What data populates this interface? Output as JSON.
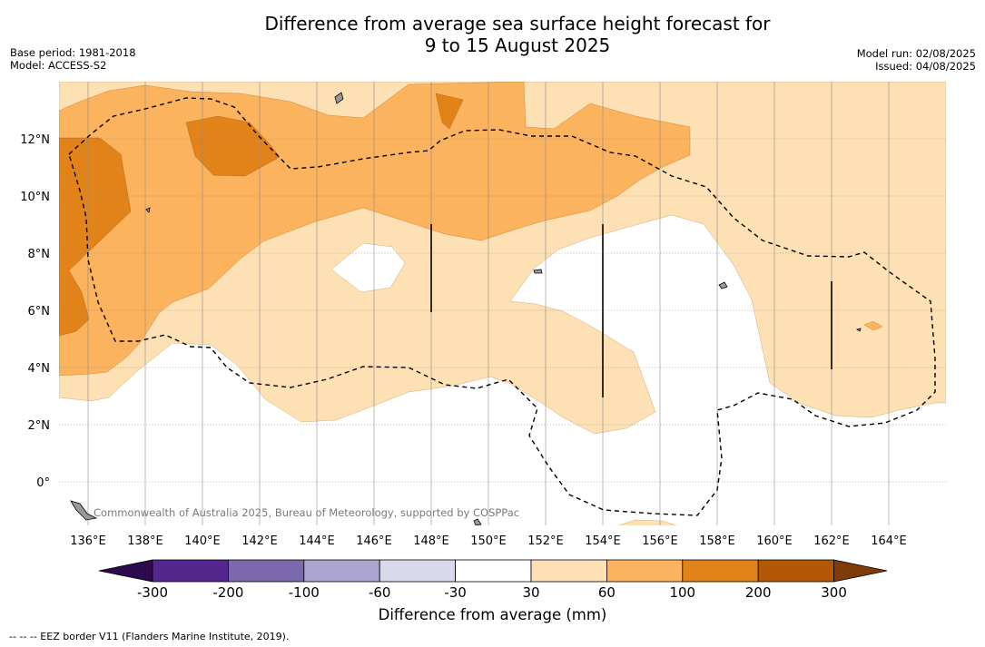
{
  "title_line1": "Difference from average sea surface height forecast for",
  "title_line2": "9 to 15 August 2025",
  "base_period": "Base period: 1981-2018",
  "model": "Model: ACCESS-S2",
  "model_run": "Model run: 02/08/2025",
  "issued": "Issued: 04/08/2025",
  "copyright": "Commonwealth of Australia 2025, Bureau of Meteorology, supported by COSPPac",
  "lon_labels": [
    "136°E",
    "138°E",
    "140°E",
    "142°E",
    "144°E",
    "146°E",
    "148°E",
    "150°E",
    "152°E",
    "154°E",
    "156°E",
    "158°E",
    "160°E",
    "162°E",
    "164°E"
  ],
  "lat_labels": [
    "12°N",
    "10°N",
    "8°N",
    "6°N",
    "4°N",
    "2°N",
    "0°"
  ],
  "colorbar": {
    "title": "Difference from average (mm)",
    "ticks": [
      "-300",
      "-200",
      "-100",
      "-60",
      "-30",
      "30",
      "60",
      "100",
      "200",
      "300"
    ],
    "colors": [
      "#2d0a4e",
      "#54278f",
      "#7b6aab",
      "#aca5cf",
      "#d9d9ec",
      "#ffffff",
      "#fde0b3",
      "#fbb35e",
      "#e2831a",
      "#b35806",
      "#7f3b08"
    ]
  },
  "footer_legend": "-- -- -- EEZ border V11 (Flanders Marine Institute, 2019)."
}
